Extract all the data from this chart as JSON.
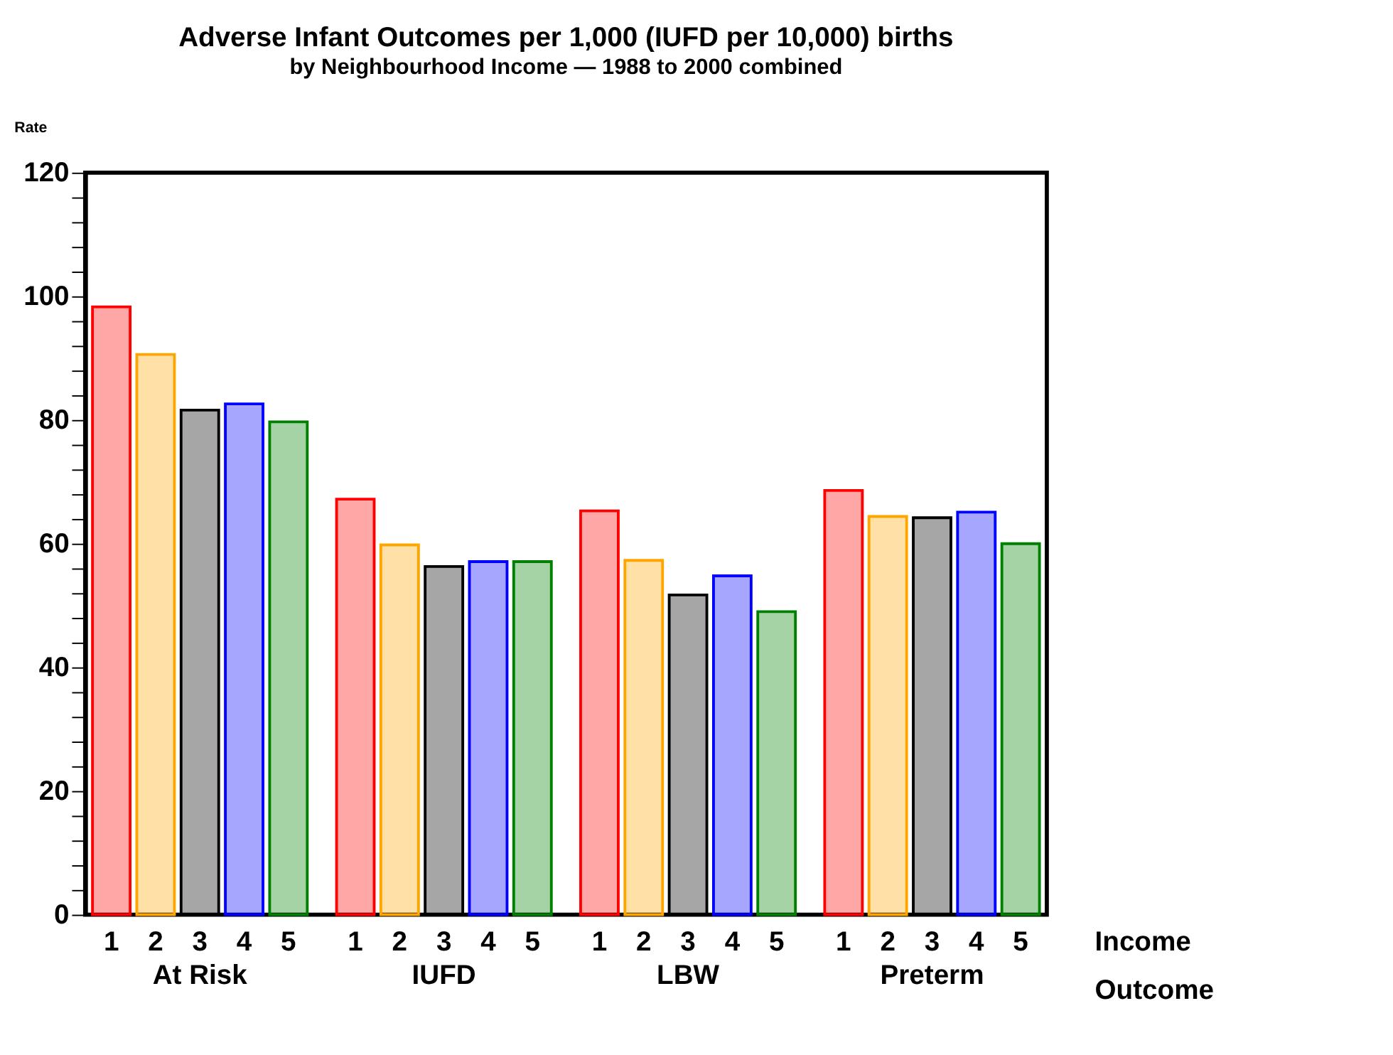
{
  "chart_data": {
    "type": "bar",
    "title": "Adverse Infant Outcomes per 1,000 (IUFD per 10,000) births",
    "subtitle": "by Neighbourhood Income — 1988 to 2000 combined",
    "ylabel": "Rate",
    "xlabel": "Outcome",
    "legend_title": "Income",
    "categories": [
      "At Risk",
      "IUFD",
      "LBW",
      "Preterm"
    ],
    "series": [
      {
        "name": "1",
        "color": "#ff0000",
        "values": [
          98.3,
          67.2,
          65.3,
          68.6
        ]
      },
      {
        "name": "2",
        "color": "#ffa500",
        "values": [
          90.6,
          59.8,
          57.3,
          64.4
        ]
      },
      {
        "name": "3",
        "color": "#000000",
        "values": [
          81.6,
          56.3,
          51.7,
          64.2
        ]
      },
      {
        "name": "4",
        "color": "#0000ff",
        "values": [
          82.6,
          57.1,
          54.8,
          65.1
        ]
      },
      {
        "name": "5",
        "color": "#008000",
        "values": [
          79.7,
          57.1,
          49.0,
          60.0
        ]
      }
    ],
    "ylim": [
      0,
      120
    ],
    "yticks": [
      0,
      {
        "value": 4,
        "label": null
      },
      {
        "value": 8,
        "label": null
      },
      {
        "value": 12,
        "label": null
      },
      {
        "value": 16,
        "label": null
      },
      20,
      {
        "value": 24,
        "label": null
      },
      {
        "value": 28,
        "label": null
      },
      {
        "value": 32,
        "label": null
      },
      {
        "value": 36,
        "label": null
      },
      40,
      {
        "value": 44,
        "label": null
      },
      {
        "value": 48,
        "label": null
      },
      {
        "value": 52,
        "label": null
      },
      {
        "value": 56,
        "label": null
      },
      60,
      {
        "value": 64,
        "label": null
      },
      {
        "value": 68,
        "label": null
      },
      {
        "value": 72,
        "label": null
      },
      {
        "value": 76,
        "label": null
      },
      80,
      {
        "value": 84,
        "label": null
      },
      {
        "value": 88,
        "label": null
      },
      {
        "value": 92,
        "label": null
      },
      {
        "value": 96,
        "label": null
      },
      100,
      {
        "value": 104,
        "label": null
      },
      {
        "value": 108,
        "label": null
      },
      {
        "value": 112,
        "label": null
      },
      {
        "value": 116,
        "label": null
      },
      120
    ],
    "grid": false,
    "legend": false
  }
}
